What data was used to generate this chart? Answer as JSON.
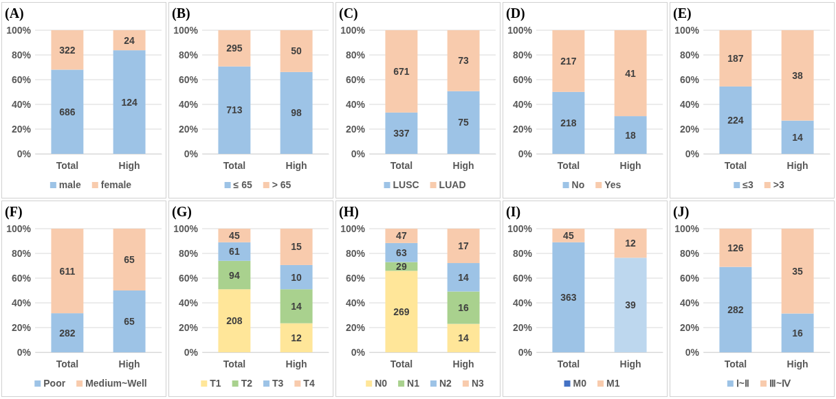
{
  "chart_data": [
    {
      "type": "bar",
      "title": "(A)",
      "categories": [
        "Total",
        "High"
      ],
      "stacked": true,
      "ylim": [
        0,
        100
      ],
      "yticks": [
        {
          "value": 0,
          "label": "0%"
        },
        {
          "value": 20,
          "label": "20%"
        },
        {
          "value": 40,
          "label": "40%"
        },
        {
          "value": 60,
          "label": "60%"
        },
        {
          "value": 80,
          "label": "80%"
        },
        {
          "value": 100,
          "label": "100%"
        }
      ],
      "grid": "y",
      "legend": "bottom",
      "series": [
        {
          "name": "male",
          "color": "#9dc3e6",
          "values": [
            68.1,
            83.8
          ]
        },
        {
          "name": "female",
          "color": "#f8cbad",
          "values": [
            31.9,
            16.2
          ]
        }
      ],
      "annotations": [
        "686",
        "124",
        "322",
        "24"
      ]
    },
    {
      "type": "bar",
      "title": "(B)",
      "categories": [
        "Total",
        "High"
      ],
      "stacked": true,
      "ylim": [
        0,
        100
      ],
      "yticks": [
        {
          "value": 0,
          "label": "0%"
        },
        {
          "value": 20,
          "label": "20%"
        },
        {
          "value": 40,
          "label": "40%"
        },
        {
          "value": 60,
          "label": "60%"
        },
        {
          "value": 80,
          "label": "80%"
        },
        {
          "value": 100,
          "label": "100%"
        }
      ],
      "grid": "y",
      "legend": "bottom",
      "series": [
        {
          "name": "≤ 65",
          "color": "#9dc3e6",
          "values": [
            70.7,
            66.2
          ]
        },
        {
          "name": "> 65",
          "color": "#f8cbad",
          "values": [
            29.3,
            33.8
          ]
        }
      ],
      "annotations": [
        "713",
        "98",
        "295",
        "50"
      ]
    },
    {
      "type": "bar",
      "title": "(C)",
      "categories": [
        "Total",
        "High"
      ],
      "stacked": true,
      "ylim": [
        0,
        100
      ],
      "yticks": [
        {
          "value": 0,
          "label": "0%"
        },
        {
          "value": 20,
          "label": "20%"
        },
        {
          "value": 40,
          "label": "40%"
        },
        {
          "value": 60,
          "label": "60%"
        },
        {
          "value": 80,
          "label": "80%"
        },
        {
          "value": 100,
          "label": "100%"
        }
      ],
      "grid": "y",
      "legend": "bottom",
      "series": [
        {
          "name": "LUSC",
          "color": "#9dc3e6",
          "values": [
            33.4,
            50.7
          ]
        },
        {
          "name": "LUAD",
          "color": "#f8cbad",
          "values": [
            66.6,
            49.3
          ]
        }
      ],
      "annotations": [
        "337",
        "75",
        "671",
        "73"
      ]
    },
    {
      "type": "bar",
      "title": "(D)",
      "categories": [
        "Total",
        "High"
      ],
      "stacked": true,
      "ylim": [
        0,
        100
      ],
      "yticks": [
        {
          "value": 0,
          "label": "0%"
        },
        {
          "value": 20,
          "label": "20%"
        },
        {
          "value": 40,
          "label": "40%"
        },
        {
          "value": 60,
          "label": "60%"
        },
        {
          "value": 80,
          "label": "80%"
        },
        {
          "value": 100,
          "label": "100%"
        }
      ],
      "grid": "y",
      "legend": "bottom",
      "series": [
        {
          "name": "No",
          "color": "#9dc3e6",
          "values": [
            50.1,
            30.5
          ]
        },
        {
          "name": "Yes",
          "color": "#f8cbad",
          "values": [
            49.9,
            69.5
          ]
        }
      ],
      "annotations": [
        "218",
        "18",
        "217",
        "41"
      ]
    },
    {
      "type": "bar",
      "title": "(E)",
      "categories": [
        "Total",
        "High"
      ],
      "stacked": true,
      "ylim": [
        0,
        100
      ],
      "yticks": [
        {
          "value": 0,
          "label": "0%"
        },
        {
          "value": 20,
          "label": "20%"
        },
        {
          "value": 40,
          "label": "40%"
        },
        {
          "value": 60,
          "label": "60%"
        },
        {
          "value": 80,
          "label": "80%"
        },
        {
          "value": 100,
          "label": "100%"
        }
      ],
      "grid": "y",
      "legend": "bottom",
      "series": [
        {
          "name": "≤3",
          "color": "#9dc3e6",
          "values": [
            54.5,
            26.9
          ]
        },
        {
          "name": ">3",
          "color": "#f8cbad",
          "values": [
            45.5,
            73.1
          ]
        }
      ],
      "annotations": [
        "224",
        "14",
        "187",
        "38"
      ]
    },
    {
      "type": "bar",
      "title": "(F)",
      "categories": [
        "Total",
        "High"
      ],
      "stacked": true,
      "ylim": [
        0,
        100
      ],
      "yticks": [
        {
          "value": 0,
          "label": "0%"
        },
        {
          "value": 20,
          "label": "20%"
        },
        {
          "value": 40,
          "label": "40%"
        },
        {
          "value": 60,
          "label": "60%"
        },
        {
          "value": 80,
          "label": "80%"
        },
        {
          "value": 100,
          "label": "100%"
        }
      ],
      "grid": "y",
      "legend": "bottom",
      "series": [
        {
          "name": "Poor",
          "color": "#9dc3e6",
          "values": [
            31.6,
            50.0
          ]
        },
        {
          "name": "Medium~Well",
          "color": "#f8cbad",
          "values": [
            68.4,
            50.0
          ]
        }
      ],
      "annotations": [
        "282",
        "65",
        "611",
        "65"
      ]
    },
    {
      "type": "bar",
      "title": "(G)",
      "categories": [
        "Total",
        "High"
      ],
      "stacked": true,
      "ylim": [
        0,
        100
      ],
      "yticks": [
        {
          "value": 0,
          "label": "0%"
        },
        {
          "value": 20,
          "label": "20%"
        },
        {
          "value": 40,
          "label": "40%"
        },
        {
          "value": 60,
          "label": "60%"
        },
        {
          "value": 80,
          "label": "80%"
        },
        {
          "value": 100,
          "label": "100%"
        }
      ],
      "grid": "y",
      "legend": "bottom",
      "series": [
        {
          "name": "T1",
          "color": "#ffe699",
          "values": [
            51.0,
            23.5
          ]
        },
        {
          "name": "T2",
          "color": "#a9d18e",
          "values": [
            23.0,
            27.5
          ]
        },
        {
          "name": "T3",
          "color": "#9dc3e6",
          "values": [
            15.0,
            19.6
          ]
        },
        {
          "name": "T4",
          "color": "#f8cbad",
          "values": [
            11.0,
            29.4
          ]
        }
      ],
      "annotations": [
        "208",
        "12",
        "94",
        "14",
        "61",
        "10",
        "45",
        "15"
      ]
    },
    {
      "type": "bar",
      "title": "(H)",
      "categories": [
        "Total",
        "High"
      ],
      "stacked": true,
      "ylim": [
        0,
        100
      ],
      "yticks": [
        {
          "value": 0,
          "label": "0%"
        },
        {
          "value": 20,
          "label": "20%"
        },
        {
          "value": 40,
          "label": "40%"
        },
        {
          "value": 60,
          "label": "60%"
        },
        {
          "value": 80,
          "label": "80%"
        },
        {
          "value": 100,
          "label": "100%"
        }
      ],
      "grid": "y",
      "legend": "bottom",
      "series": [
        {
          "name": "N0",
          "color": "#ffe699",
          "values": [
            65.9,
            23.0
          ]
        },
        {
          "name": "N1",
          "color": "#a9d18e",
          "values": [
            7.1,
            26.2
          ]
        },
        {
          "name": "N2",
          "color": "#9dc3e6",
          "values": [
            15.4,
            23.0
          ]
        },
        {
          "name": "N3",
          "color": "#f8cbad",
          "values": [
            11.6,
            27.8
          ]
        }
      ],
      "annotations": [
        "269",
        "14",
        "29",
        "16",
        "63",
        "14",
        "47",
        "17"
      ]
    },
    {
      "type": "bar",
      "title": "(I)",
      "categories": [
        "Total",
        "High"
      ],
      "stacked": true,
      "ylim": [
        0,
        100
      ],
      "yticks": [
        {
          "value": 0,
          "label": "0%"
        },
        {
          "value": 20,
          "label": "20%"
        },
        {
          "value": 40,
          "label": "40%"
        },
        {
          "value": 60,
          "label": "60%"
        },
        {
          "value": 80,
          "label": "80%"
        },
        {
          "value": 100,
          "label": "100%"
        }
      ],
      "grid": "y",
      "legend": "bottom",
      "series": [
        {
          "name": "M0",
          "color": "#4472c4",
          "colors": [
            "#9dc3e6",
            "#bdd7ee"
          ],
          "values": [
            89.0,
            76.5
          ]
        },
        {
          "name": "M1",
          "color": "#f8cbad",
          "values": [
            11.0,
            23.5
          ]
        }
      ],
      "annotations": [
        "363",
        "39",
        "45",
        "12"
      ]
    },
    {
      "type": "bar",
      "title": "(J)",
      "categories": [
        "Total",
        "High"
      ],
      "stacked": true,
      "ylim": [
        0,
        100
      ],
      "yticks": [
        {
          "value": 0,
          "label": "0%"
        },
        {
          "value": 20,
          "label": "20%"
        },
        {
          "value": 40,
          "label": "40%"
        },
        {
          "value": 60,
          "label": "60%"
        },
        {
          "value": 80,
          "label": "80%"
        },
        {
          "value": 100,
          "label": "100%"
        }
      ],
      "grid": "y",
      "legend": "bottom",
      "series": [
        {
          "name": "Ⅰ~Ⅱ",
          "color": "#9dc3e6",
          "values": [
            69.1,
            31.4
          ]
        },
        {
          "name": "Ⅲ~Ⅳ",
          "color": "#f8cbad",
          "values": [
            30.9,
            68.6
          ]
        }
      ],
      "annotations": [
        "282",
        "16",
        "126",
        "35"
      ]
    }
  ]
}
